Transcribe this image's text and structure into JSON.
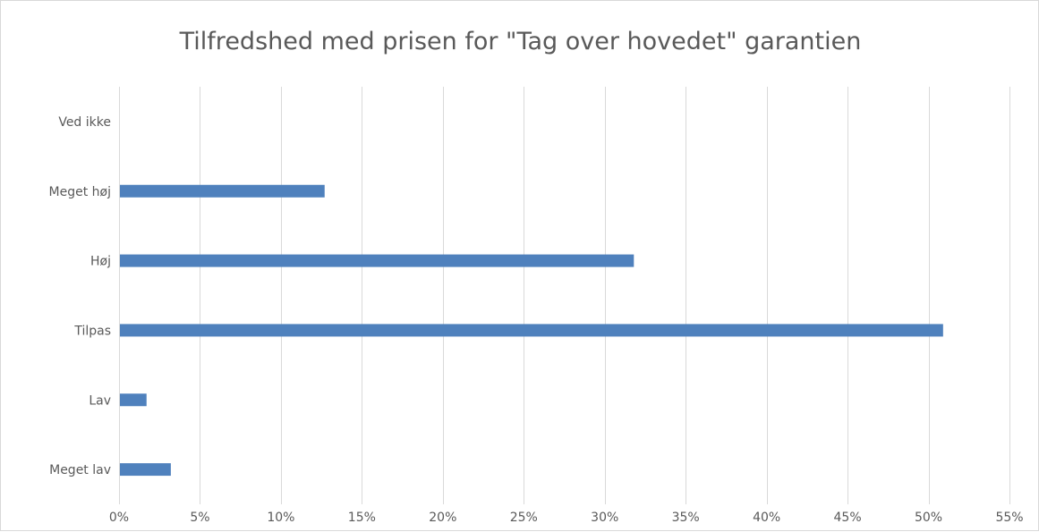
{
  "chart_data": {
    "type": "bar",
    "orientation": "horizontal",
    "title": "Tilfredshed med prisen for \"Tag over hovedet\" garantien",
    "categories": [
      "Meget lav",
      "Lav",
      "Tilpas",
      "Høj",
      "Meget høj",
      "Ved ikke"
    ],
    "values": [
      3.2,
      1.7,
      50.9,
      31.8,
      12.7,
      0
    ],
    "xlim": [
      0,
      55
    ],
    "xticks": [
      0,
      5,
      10,
      15,
      20,
      25,
      30,
      35,
      40,
      45,
      50,
      55
    ],
    "tick_format": "percent",
    "grid": true,
    "legend": "none",
    "colors": {
      "bar": "#4f81bd"
    }
  }
}
